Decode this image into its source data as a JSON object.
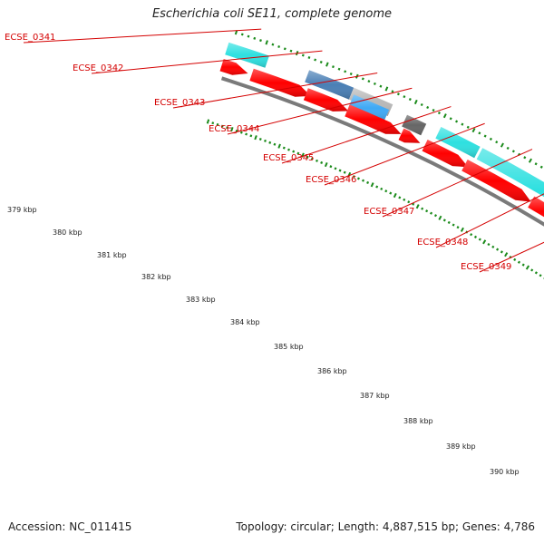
{
  "title": "Escherichia coli SE11, complete genome",
  "accession": "Accession: NC_011415",
  "stats": "Topology: circular; Length: 4,887,515 bp; Genes: 4,786",
  "colors": {
    "red": "#ff0000",
    "cyan": "#2ee0e0",
    "blue": "#3fa9f5",
    "steel": "#4a7fb5",
    "gray": "#b8b8b8",
    "darkgray": "#666666",
    "backbone": "#7a7a7a",
    "dots": "#1a8a1a",
    "label_red": "#d40000"
  },
  "genes": [
    {
      "label": "ECSE_0341"
    },
    {
      "label": "ECSE_0342"
    },
    {
      "label": "ECSE_0343"
    },
    {
      "label": "ECSE_0344"
    },
    {
      "label": "ECSE_0345"
    },
    {
      "label": "ECSE_0346"
    },
    {
      "label": "ECSE_0347"
    },
    {
      "label": "ECSE_0348"
    },
    {
      "label": "ECSE_0349"
    }
  ],
  "ticks": [
    {
      "label": "379 kbp"
    },
    {
      "label": "380 kbp"
    },
    {
      "label": "381 kbp"
    },
    {
      "label": "382 kbp"
    },
    {
      "label": "383 kbp"
    },
    {
      "label": "384 kbp"
    },
    {
      "label": "385 kbp"
    },
    {
      "label": "386 kbp"
    },
    {
      "label": "387 kbp"
    },
    {
      "label": "388 kbp"
    },
    {
      "label": "389 kbp"
    },
    {
      "label": "390 kbp"
    }
  ]
}
